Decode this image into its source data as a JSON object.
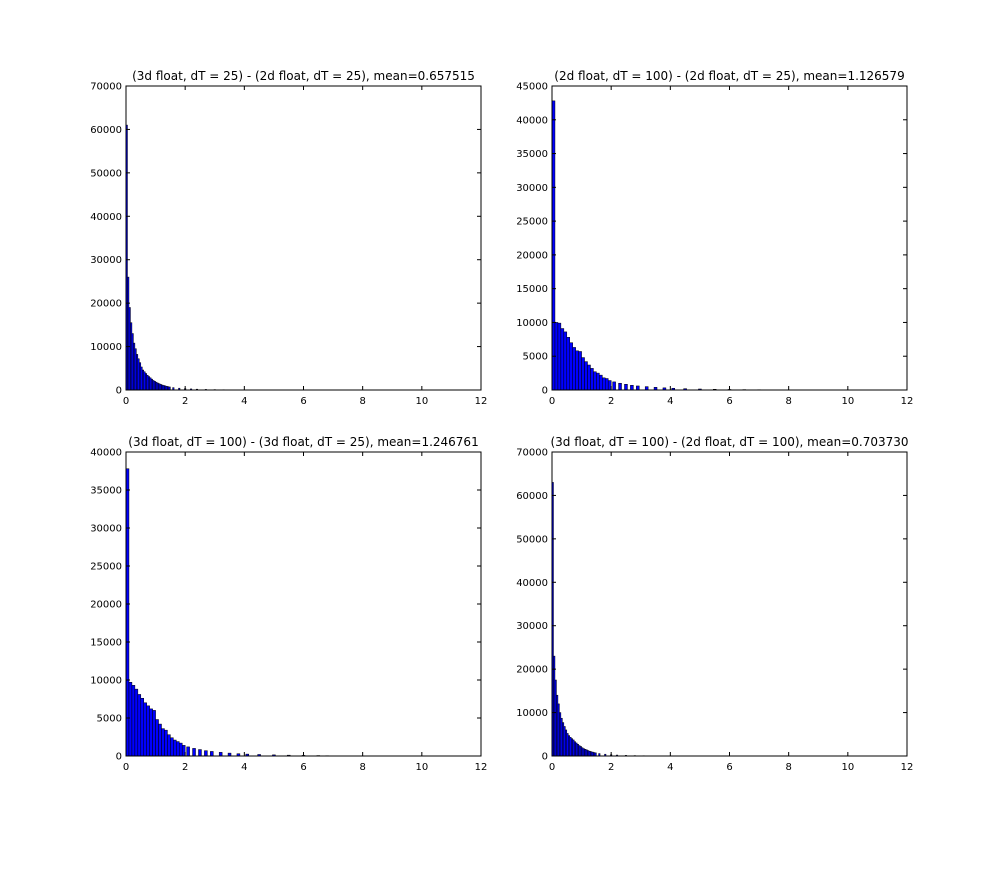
{
  "chart_data": [
    {
      "type": "bar",
      "title": "(3d float, dT = 25) - (2d float, dT = 25), mean=0.657515",
      "xlabel": "",
      "ylabel": "",
      "xlim": [
        0,
        12
      ],
      "ylim": [
        0,
        70000
      ],
      "xticks": [
        0,
        2,
        4,
        6,
        8,
        10,
        12
      ],
      "yticks": [
        0,
        10000,
        20000,
        30000,
        40000,
        50000,
        60000,
        70000
      ],
      "bar_color": "#0000ff",
      "edge_color": "#000000",
      "bin_width": 0.05,
      "x": [
        0.025,
        0.075,
        0.125,
        0.175,
        0.225,
        0.275,
        0.325,
        0.375,
        0.425,
        0.475,
        0.525,
        0.575,
        0.625,
        0.675,
        0.725,
        0.775,
        0.825,
        0.875,
        0.925,
        0.975,
        1.025,
        1.075,
        1.125,
        1.175,
        1.225,
        1.275,
        1.325,
        1.375,
        1.425,
        1.475,
        1.6,
        1.8,
        2.0,
        2.2,
        2.4,
        2.7,
        3.0,
        3.3,
        3.6,
        3.9
      ],
      "values": [
        61000,
        26000,
        19000,
        15500,
        13000,
        10800,
        9500,
        8200,
        7200,
        6300,
        5300,
        4600,
        4200,
        3800,
        3400,
        3100,
        2800,
        2500,
        2200,
        2000,
        1800,
        1600,
        1450,
        1300,
        1150,
        1050,
        950,
        850,
        780,
        700,
        550,
        420,
        320,
        250,
        190,
        140,
        100,
        70,
        50,
        30
      ]
    },
    {
      "type": "bar",
      "title": "(2d float, dT = 100) - (2d float, dT = 25), mean=1.126579",
      "xlabel": "",
      "ylabel": "",
      "xlim": [
        0,
        12
      ],
      "ylim": [
        0,
        45000
      ],
      "xticks": [
        0,
        2,
        4,
        6,
        8,
        10,
        12
      ],
      "yticks": [
        0,
        5000,
        10000,
        15000,
        20000,
        25000,
        30000,
        35000,
        40000,
        45000
      ],
      "bar_color": "#0000ff",
      "edge_color": "#000000",
      "bin_width": 0.1,
      "x": [
        0.05,
        0.15,
        0.25,
        0.35,
        0.45,
        0.55,
        0.65,
        0.75,
        0.85,
        0.95,
        1.05,
        1.15,
        1.25,
        1.35,
        1.45,
        1.55,
        1.65,
        1.75,
        1.85,
        1.95,
        2.1,
        2.3,
        2.5,
        2.7,
        2.9,
        3.2,
        3.5,
        3.8,
        4.1,
        4.5,
        5.0,
        5.5,
        6.0,
        6.5,
        7.0,
        7.5,
        7.9
      ],
      "values": [
        42800,
        10000,
        9900,
        9100,
        8600,
        7800,
        7000,
        6300,
        5800,
        5700,
        4800,
        4200,
        3700,
        3200,
        2700,
        2500,
        2200,
        1800,
        1700,
        1400,
        1200,
        1000,
        850,
        700,
        600,
        500,
        400,
        320,
        260,
        200,
        150,
        110,
        80,
        60,
        45,
        30,
        20
      ]
    },
    {
      "type": "bar",
      "title": "(3d float, dT = 100) - (3d float, dT = 25), mean=1.246761",
      "xlabel": "",
      "ylabel": "",
      "xlim": [
        0,
        12
      ],
      "ylim": [
        0,
        40000
      ],
      "xticks": [
        0,
        2,
        4,
        6,
        8,
        10,
        12
      ],
      "yticks": [
        0,
        5000,
        10000,
        15000,
        20000,
        25000,
        30000,
        35000,
        40000
      ],
      "bar_color": "#0000ff",
      "edge_color": "#000000",
      "bin_width": 0.1,
      "x": [
        0.05,
        0.15,
        0.25,
        0.35,
        0.45,
        0.55,
        0.65,
        0.75,
        0.85,
        0.95,
        1.05,
        1.15,
        1.25,
        1.35,
        1.45,
        1.55,
        1.65,
        1.75,
        1.85,
        1.95,
        2.1,
        2.3,
        2.5,
        2.7,
        2.9,
        3.2,
        3.5,
        3.8,
        4.1,
        4.5,
        5.0,
        5.5,
        6.0,
        6.5,
        6.8
      ],
      "values": [
        37800,
        9700,
        9300,
        8800,
        8100,
        7600,
        7000,
        6600,
        6200,
        6000,
        4800,
        4200,
        3600,
        3400,
        2800,
        2400,
        2100,
        1900,
        1700,
        1400,
        1200,
        1000,
        850,
        700,
        600,
        480,
        380,
        300,
        250,
        200,
        150,
        110,
        80,
        60,
        40
      ]
    },
    {
      "type": "bar",
      "title": "(3d float, dT = 100) - (2d float, dT = 100), mean=0.703730",
      "xlabel": "",
      "ylabel": "",
      "xlim": [
        0,
        12
      ],
      "ylim": [
        0,
        70000
      ],
      "xticks": [
        0,
        2,
        4,
        6,
        8,
        10,
        12
      ],
      "yticks": [
        0,
        10000,
        20000,
        30000,
        40000,
        50000,
        60000,
        70000
      ],
      "bar_color": "#0000ff",
      "edge_color": "#000000",
      "bin_width": 0.05,
      "x": [
        0.025,
        0.075,
        0.125,
        0.175,
        0.225,
        0.275,
        0.325,
        0.375,
        0.425,
        0.475,
        0.525,
        0.575,
        0.625,
        0.675,
        0.725,
        0.775,
        0.825,
        0.875,
        0.925,
        0.975,
        1.025,
        1.075,
        1.125,
        1.175,
        1.225,
        1.275,
        1.325,
        1.375,
        1.425,
        1.475,
        1.6,
        1.8,
        2.0,
        2.2,
        2.5,
        2.8,
        3.1,
        3.4
      ],
      "values": [
        63000,
        23000,
        17500,
        14000,
        12000,
        10000,
        8700,
        7700,
        6800,
        6000,
        5200,
        4700,
        4300,
        4000,
        3700,
        3300,
        3000,
        2700,
        2400,
        2200,
        1900,
        1700,
        1550,
        1400,
        1250,
        1100,
        1000,
        900,
        800,
        720,
        560,
        420,
        300,
        220,
        150,
        100,
        70,
        40
      ]
    }
  ]
}
